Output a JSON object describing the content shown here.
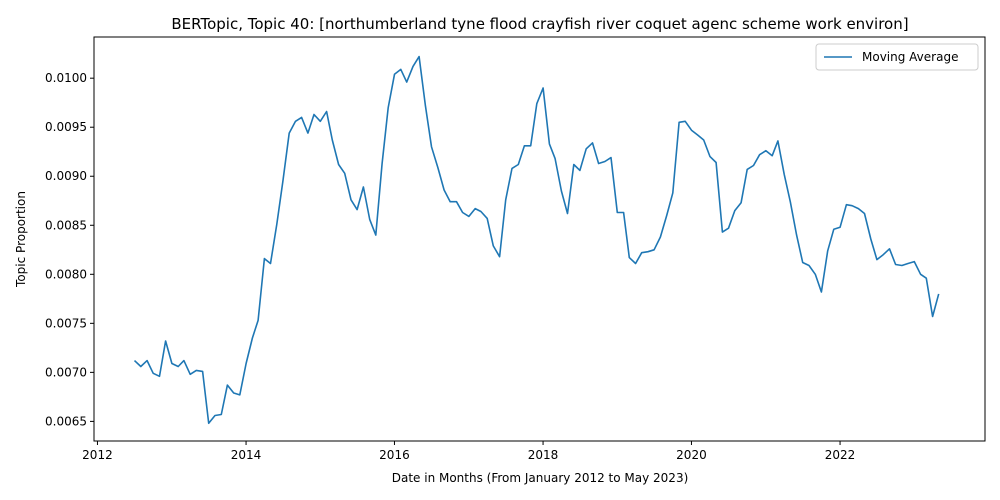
{
  "chart_data": {
    "type": "line",
    "title": "BERTopic, Topic 40: [northumberland tyne flood crayfish river coquet agenc scheme work environ]",
    "xlabel": "Date in Months (From January 2012 to May 2023)",
    "ylabel": "Topic Proportion",
    "xlim": [
      "2011-12-15",
      "2023-12-15"
    ],
    "ylim": [
      0.0063,
      0.01042
    ],
    "x_ticks": [
      "2012",
      "2014",
      "2016",
      "2018",
      "2020",
      "2022"
    ],
    "y_ticks": [
      "0.0065",
      "0.0070",
      "0.0075",
      "0.0080",
      "0.0085",
      "0.0090",
      "0.0095",
      "0.0100"
    ],
    "grid": false,
    "legend_position": "top-right",
    "series": [
      {
        "name": "Moving Average",
        "color": "#1f77b4",
        "x": [
          "2012-07",
          "2012-08",
          "2012-09",
          "2012-10",
          "2012-11",
          "2012-12",
          "2013-01",
          "2013-02",
          "2013-03",
          "2013-04",
          "2013-05",
          "2013-06",
          "2013-07",
          "2013-08",
          "2013-09",
          "2013-10",
          "2013-11",
          "2013-12",
          "2014-01",
          "2014-02",
          "2014-03",
          "2014-04",
          "2014-05",
          "2014-06",
          "2014-07",
          "2014-08",
          "2014-09",
          "2014-10",
          "2014-11",
          "2014-12",
          "2015-01",
          "2015-02",
          "2015-03",
          "2015-04",
          "2015-05",
          "2015-06",
          "2015-07",
          "2015-08",
          "2015-09",
          "2015-10",
          "2015-11",
          "2015-12",
          "2016-01",
          "2016-02",
          "2016-03",
          "2016-04",
          "2016-05",
          "2016-06",
          "2016-07",
          "2016-08",
          "2016-09",
          "2016-10",
          "2016-11",
          "2016-12",
          "2017-01",
          "2017-02",
          "2017-03",
          "2017-04",
          "2017-05",
          "2017-06",
          "2017-07",
          "2017-08",
          "2017-09",
          "2017-10",
          "2017-11",
          "2017-12",
          "2018-01",
          "2018-02",
          "2018-03",
          "2018-04",
          "2018-05",
          "2018-06",
          "2018-07",
          "2018-08",
          "2018-09",
          "2018-10",
          "2018-11",
          "2018-12",
          "2019-01",
          "2019-02",
          "2019-03",
          "2019-04",
          "2019-05",
          "2019-06",
          "2019-07",
          "2019-08",
          "2019-09",
          "2019-10",
          "2019-11",
          "2019-12",
          "2020-01",
          "2020-02",
          "2020-03",
          "2020-04",
          "2020-05",
          "2020-06",
          "2020-07",
          "2020-08",
          "2020-09",
          "2020-10",
          "2020-11",
          "2020-12",
          "2021-01",
          "2021-02",
          "2021-03",
          "2021-04",
          "2021-05",
          "2021-06",
          "2021-07",
          "2021-08",
          "2021-09",
          "2021-10",
          "2021-11",
          "2021-12",
          "2022-01",
          "2022-02",
          "2022-03",
          "2022-04",
          "2022-05",
          "2022-06",
          "2022-07",
          "2022-08",
          "2022-09",
          "2022-10",
          "2022-11",
          "2022-12",
          "2023-01",
          "2023-02",
          "2023-03",
          "2023-04",
          "2023-05"
        ],
        "values": [
          0.00712,
          0.00706,
          0.00712,
          0.00699,
          0.00696,
          0.00732,
          0.00709,
          0.00706,
          0.00712,
          0.00698,
          0.00702,
          0.00701,
          0.00648,
          0.00656,
          0.00657,
          0.00687,
          0.00679,
          0.00677,
          0.00709,
          0.00735,
          0.00753,
          0.00816,
          0.00811,
          0.00851,
          0.00895,
          0.00944,
          0.00956,
          0.0096,
          0.00944,
          0.00963,
          0.00956,
          0.00966,
          0.00937,
          0.00912,
          0.00903,
          0.00876,
          0.00866,
          0.00889,
          0.00856,
          0.0084,
          0.00913,
          0.0097,
          0.01004,
          0.01009,
          0.00996,
          0.01012,
          0.01022,
          0.00972,
          0.0093,
          0.00909,
          0.00886,
          0.00874,
          0.00874,
          0.00863,
          0.00859,
          0.00867,
          0.00864,
          0.00857,
          0.00829,
          0.00818,
          0.00876,
          0.00908,
          0.00912,
          0.00931,
          0.00931,
          0.00974,
          0.0099,
          0.00933,
          0.00918,
          0.00885,
          0.00862,
          0.00912,
          0.00906,
          0.00928,
          0.00934,
          0.00913,
          0.00915,
          0.00919,
          0.00863,
          0.00863,
          0.00817,
          0.00811,
          0.00822,
          0.00823,
          0.00825,
          0.00838,
          0.0086,
          0.00883,
          0.00955,
          0.00956,
          0.00947,
          0.00942,
          0.00937,
          0.0092,
          0.00914,
          0.00843,
          0.00847,
          0.00865,
          0.00873,
          0.00907,
          0.00911,
          0.00922,
          0.00926,
          0.00921,
          0.00936,
          0.00902,
          0.00874,
          0.0084,
          0.00812,
          0.00809,
          0.008,
          0.00782,
          0.00824,
          0.00846,
          0.00848,
          0.00871,
          0.0087,
          0.00867,
          0.00862,
          0.00836,
          0.00815,
          0.0082,
          0.00826,
          0.0081,
          0.00809,
          0.00811,
          0.00813,
          0.008,
          0.00796,
          0.00757,
          0.0078
        ]
      }
    ]
  }
}
